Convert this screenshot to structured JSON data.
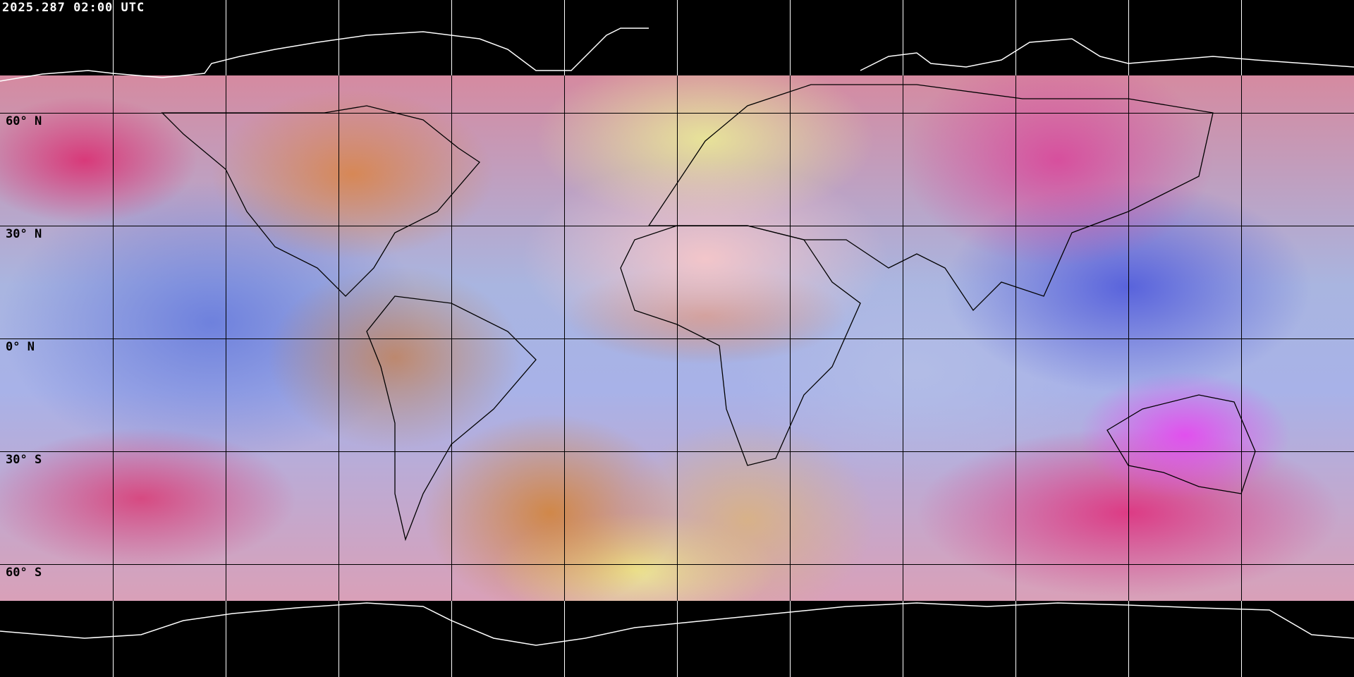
{
  "header": {
    "timestamp": "2025.287 02:00 UTC"
  },
  "map": {
    "projection": "equirectangular",
    "latitude_labels": [
      "60° N",
      "30° N",
      "0° N",
      "30° S",
      "60° S"
    ],
    "gridline_longitude_spacing_deg": 30,
    "gridline_latitude_spacing_deg": 30,
    "coastline_color_land_area": "#000000",
    "coastline_color_no_data": "#ffffff",
    "gridline_color": "#000000"
  }
}
